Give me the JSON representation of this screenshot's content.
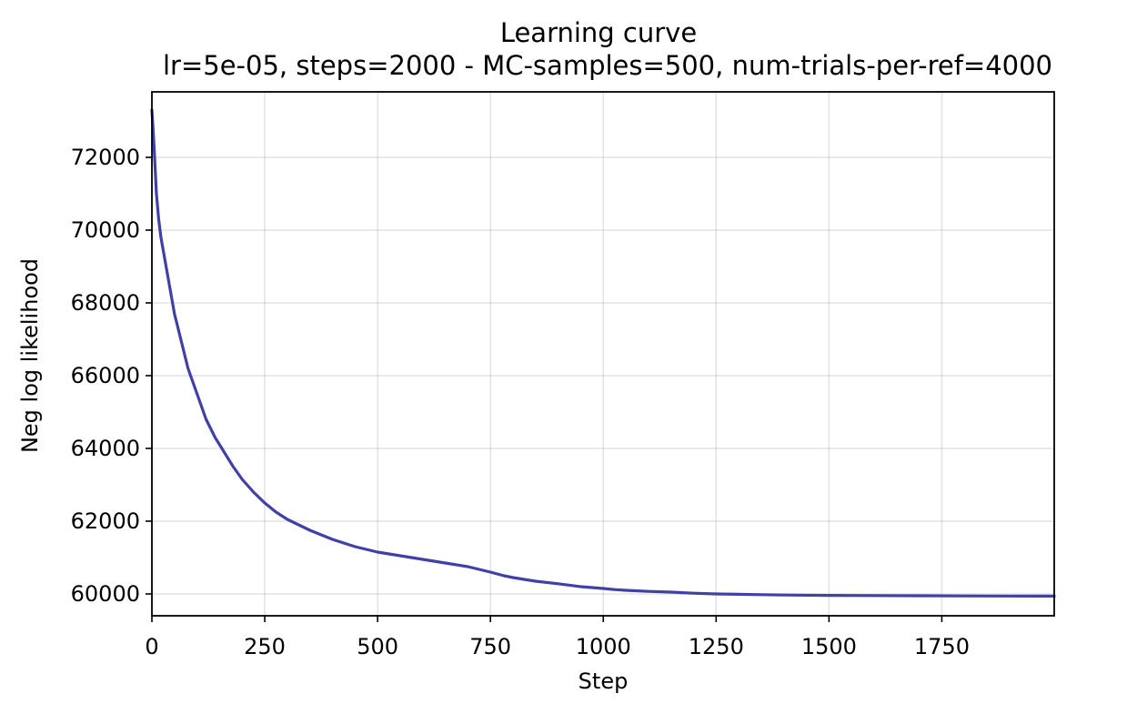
{
  "chart_data": {
    "type": "line",
    "title": "Learning curve",
    "subtitle": "lr=5e-05, steps=2000 - MC-samples=500, num-trials-per-ref=4000",
    "xlabel": "Step",
    "ylabel": "Neg log likelihood",
    "xlim": [
      0,
      1999
    ],
    "ylim": [
      59400,
      73800
    ],
    "xticks": [
      0,
      250,
      500,
      750,
      1000,
      1250,
      1500,
      1750
    ],
    "xtick_labels": [
      "0",
      "250",
      "500",
      "750",
      "1000",
      "1250",
      "1500",
      "1750"
    ],
    "yticks": [
      60000,
      62000,
      64000,
      66000,
      68000,
      70000,
      72000
    ],
    "ytick_labels": [
      "60000",
      "62000",
      "64000",
      "66000",
      "68000",
      "70000",
      "72000"
    ],
    "grid": true,
    "series": [
      {
        "color": "#4040a8",
        "x": [
          0,
          3,
          6,
          10,
          15,
          20,
          30,
          40,
          50,
          60,
          70,
          80,
          100,
          120,
          140,
          160,
          180,
          200,
          225,
          250,
          275,
          300,
          325,
          350,
          400,
          450,
          500,
          550,
          600,
          650,
          700,
          750,
          780,
          800,
          850,
          900,
          950,
          1000,
          1025,
          1050,
          1100,
          1150,
          1200,
          1250,
          1300,
          1350,
          1400,
          1500,
          1600,
          1700,
          1800,
          1900,
          1999
        ],
        "y": [
          73300,
          72700,
          72000,
          71000,
          70300,
          69800,
          69100,
          68400,
          67700,
          67200,
          66700,
          66200,
          65500,
          64800,
          64300,
          63900,
          63500,
          63150,
          62800,
          62500,
          62250,
          62050,
          61900,
          61750,
          61500,
          61300,
          61150,
          61050,
          60950,
          60850,
          60750,
          60600,
          60500,
          60450,
          60350,
          60280,
          60200,
          60150,
          60120,
          60100,
          60070,
          60050,
          60020,
          60000,
          59990,
          59980,
          59970,
          59960,
          59955,
          59950,
          59945,
          59942,
          59940
        ]
      }
    ]
  }
}
